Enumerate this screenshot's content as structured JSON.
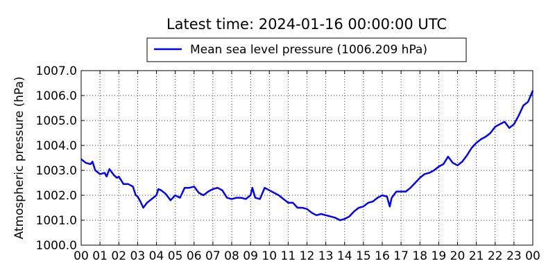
{
  "chart_data": {
    "type": "line",
    "title": "Latest time: 2024-01-16 00:00:00 UTC",
    "xlabel": "",
    "ylabel": "Atmospheric pressure (hPa)",
    "ylim": [
      1000.0,
      1007.0
    ],
    "xlim": [
      0,
      24
    ],
    "grid": true,
    "legend_position": "top-center",
    "x_tick_labels": [
      "00",
      "01",
      "02",
      "03",
      "04",
      "05",
      "06",
      "07",
      "08",
      "09",
      "10",
      "11",
      "12",
      "13",
      "14",
      "15",
      "16",
      "17",
      "18",
      "19",
      "20",
      "21",
      "22",
      "23",
      "00"
    ],
    "y_tick_labels": [
      "1000.0",
      "1001.0",
      "1002.0",
      "1003.0",
      "1004.0",
      "1005.0",
      "1006.0",
      "1007.0"
    ],
    "series": [
      {
        "name": "Mean sea level pressure (1006.209 hPa)",
        "color": "#0000ff",
        "x": [
          0.0,
          0.25,
          0.5,
          0.6,
          0.75,
          1.0,
          1.25,
          1.35,
          1.5,
          1.75,
          1.9,
          2.0,
          2.25,
          2.5,
          2.75,
          2.9,
          3.0,
          3.15,
          3.3,
          3.5,
          3.75,
          4.0,
          4.1,
          4.25,
          4.5,
          4.75,
          5.0,
          5.25,
          5.5,
          5.75,
          6.0,
          6.25,
          6.5,
          6.75,
          7.0,
          7.25,
          7.5,
          7.75,
          8.0,
          8.25,
          8.5,
          8.75,
          9.0,
          9.1,
          9.25,
          9.5,
          9.75,
          10.0,
          10.25,
          10.5,
          10.75,
          11.0,
          11.25,
          11.5,
          11.75,
          12.0,
          12.25,
          12.5,
          12.75,
          13.0,
          13.25,
          13.5,
          13.75,
          14.0,
          14.25,
          14.5,
          14.75,
          15.0,
          15.25,
          15.5,
          15.75,
          16.0,
          16.25,
          16.4,
          16.5,
          16.75,
          17.0,
          17.25,
          17.5,
          17.75,
          18.0,
          18.25,
          18.5,
          18.75,
          19.0,
          19.25,
          19.5,
          19.75,
          20.0,
          20.25,
          20.5,
          20.75,
          21.0,
          21.25,
          21.5,
          21.75,
          22.0,
          22.25,
          22.5,
          22.75,
          23.0,
          23.25,
          23.5,
          23.75,
          24.0
        ],
        "values": [
          1003.45,
          1003.3,
          1003.25,
          1003.35,
          1003.0,
          1002.85,
          1002.9,
          1002.75,
          1003.05,
          1002.8,
          1002.7,
          1002.75,
          1002.45,
          1002.45,
          1002.35,
          1002.0,
          1001.95,
          1001.75,
          1001.5,
          1001.7,
          1001.85,
          1002.0,
          1002.25,
          1002.2,
          1002.05,
          1001.8,
          1002.0,
          1001.9,
          1002.3,
          1002.3,
          1002.35,
          1002.1,
          1002.0,
          1002.15,
          1002.25,
          1002.3,
          1002.2,
          1001.9,
          1001.85,
          1001.9,
          1001.9,
          1001.85,
          1002.0,
          1002.3,
          1001.9,
          1001.85,
          1002.3,
          1002.2,
          1002.1,
          1002.0,
          1001.85,
          1001.7,
          1001.7,
          1001.5,
          1001.5,
          1001.45,
          1001.3,
          1001.2,
          1001.25,
          1001.2,
          1001.15,
          1001.1,
          1001.0,
          1001.05,
          1001.15,
          1001.35,
          1001.5,
          1001.55,
          1001.7,
          1001.75,
          1001.9,
          1002.0,
          1001.95,
          1001.55,
          1001.9,
          1002.15,
          1002.15,
          1002.15,
          1002.3,
          1002.5,
          1002.7,
          1002.85,
          1002.9,
          1003.0,
          1003.15,
          1003.25,
          1003.55,
          1003.3,
          1003.2,
          1003.35,
          1003.6,
          1003.9,
          1004.1,
          1004.25,
          1004.35,
          1004.5,
          1004.75,
          1004.85,
          1004.95,
          1004.7,
          1004.85,
          1005.2,
          1005.6,
          1005.75,
          1006.2
        ]
      }
    ]
  }
}
